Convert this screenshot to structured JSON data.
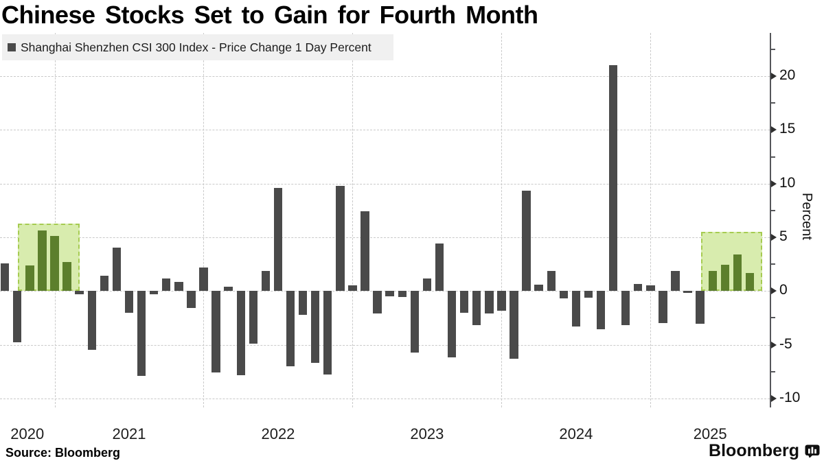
{
  "header": {
    "title": "Chinese Stocks Set to Gain for Fourth Month"
  },
  "legend": {
    "label": "Shanghai Shenzhen CSI 300 Index - Price Change 1 Day Percent",
    "swatch_color": "#4a4a4a"
  },
  "source": {
    "text": "Source: Bloomberg"
  },
  "branding": {
    "wordmark": "Bloomberg",
    "logo_icon": "bloomberg-chart-bubble-icon"
  },
  "chart_data": {
    "type": "bar",
    "title": "Chinese Stocks Set to Gain for Fourth Month",
    "series_name": "Shanghai Shenzhen CSI 300 Index - Price Change 1 Day Percent",
    "ylabel": "Percent",
    "ylim": [
      -10.8,
      24
    ],
    "grid": true,
    "y_ticks_major": [
      20,
      15,
      10,
      5,
      0,
      -5,
      -10
    ],
    "y_ticks_minor": [
      22.5,
      17.5,
      12.5,
      7.5,
      2.5,
      -2.5,
      -7.5
    ],
    "x_year_labels": [
      "2020",
      "2021",
      "2022",
      "2023",
      "2024",
      "2025"
    ],
    "months": [
      "2020-08",
      "2020-09",
      "2020-10",
      "2020-11",
      "2020-12",
      "2021-01",
      "2021-02",
      "2021-03",
      "2021-04",
      "2021-05",
      "2021-06",
      "2021-07",
      "2021-08",
      "2021-09",
      "2021-10",
      "2021-11",
      "2021-12",
      "2022-01",
      "2022-02",
      "2022-03",
      "2022-04",
      "2022-05",
      "2022-06",
      "2022-07",
      "2022-08",
      "2022-09",
      "2022-10",
      "2022-11",
      "2022-12",
      "2023-01",
      "2023-02",
      "2023-03",
      "2023-04",
      "2023-05",
      "2023-06",
      "2023-07",
      "2023-08",
      "2023-09",
      "2023-10",
      "2023-11",
      "2023-12",
      "2024-01",
      "2024-02",
      "2024-03",
      "2024-04",
      "2024-05",
      "2024-06",
      "2024-07",
      "2024-08",
      "2024-09",
      "2024-10",
      "2024-11",
      "2024-12",
      "2025-01",
      "2025-02",
      "2025-03",
      "2025-04",
      "2025-05",
      "2025-06",
      "2025-07",
      "2025-08"
    ],
    "values": [
      2.6,
      -4.75,
      2.35,
      5.65,
      5.1,
      2.7,
      -0.3,
      -5.45,
      1.45,
      4.05,
      -2.0,
      -7.9,
      -0.3,
      1.2,
      0.85,
      -1.6,
      2.2,
      -7.6,
      0.4,
      -7.85,
      -4.9,
      1.85,
      9.6,
      -7.0,
      -2.2,
      -6.7,
      -7.8,
      9.8,
      0.5,
      7.4,
      -2.1,
      -0.5,
      -0.55,
      -5.7,
      1.15,
      4.45,
      -6.2,
      -2.0,
      -3.2,
      -2.1,
      -1.85,
      -6.3,
      9.35,
      0.6,
      1.85,
      -0.7,
      -3.3,
      -0.6,
      -3.55,
      21.0,
      -3.2,
      0.65,
      0.5,
      -3.0,
      1.9,
      -0.15,
      -3.05,
      1.85,
      2.45,
      3.4,
      1.7
    ],
    "highlights": [
      {
        "from": "2020-10",
        "to": "2021-01",
        "start_index": 2,
        "end_index": 5,
        "box_top_value": 6.3
      },
      {
        "from": "2025-05",
        "to": "2025-08",
        "start_index": 57,
        "end_index": 60,
        "box_top_value": 5.5
      }
    ],
    "colors": {
      "bar": "#4a4a4a",
      "highlight_bar": "#5c7f2c",
      "highlight_fill": "#d8ecae",
      "highlight_border": "#a6cb51",
      "grid": "#c9c9c9",
      "axis": "#55565a"
    },
    "legend_position": "top-left"
  }
}
